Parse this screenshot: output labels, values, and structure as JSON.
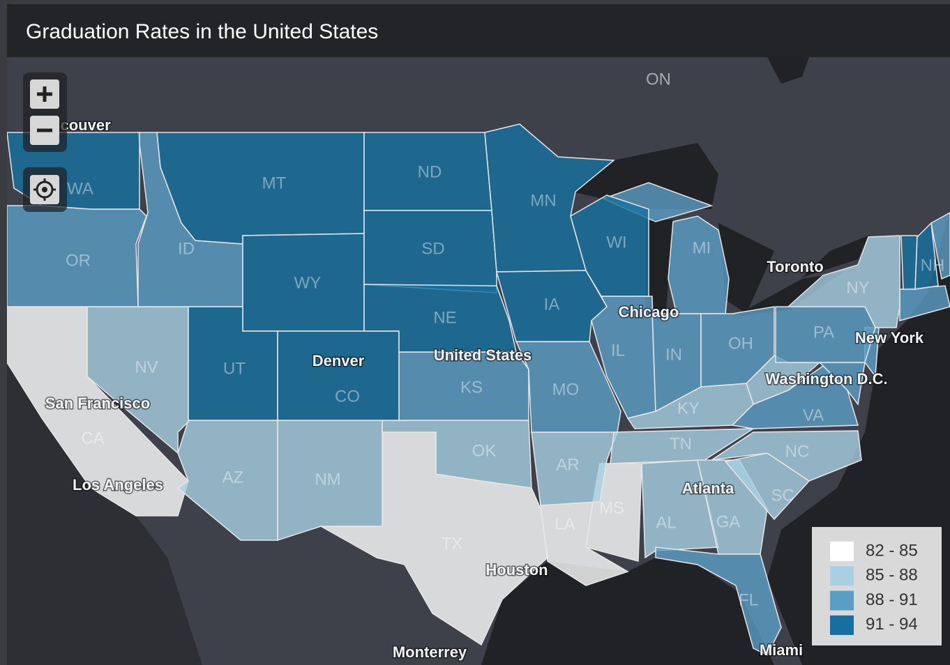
{
  "title": "Graduation Rates in the United States",
  "legend": [
    {
      "label": "82 - 85",
      "color": "#ffffff",
      "states": [
        "CA",
        "TX",
        "LA",
        "MS"
      ]
    },
    {
      "label": "85 - 88",
      "color": "#a8cfe2",
      "states": [
        "NV",
        "AZ",
        "NM",
        "OK",
        "AR",
        "KY",
        "TN",
        "AL",
        "GA",
        "SC",
        "NC",
        "NY"
      ]
    },
    {
      "label": "88 - 91",
      "color": "#5b9ec4",
      "states": [
        "OR",
        "ID",
        "KS",
        "MO",
        "IL",
        "IN",
        "MI",
        "OH",
        "FL",
        "VA",
        "PA"
      ]
    },
    {
      "label": "91 - 94",
      "color": "#16709f",
      "states": [
        "WA",
        "MT",
        "WY",
        "UT",
        "CO",
        "ND",
        "SD",
        "NE",
        "MN",
        "IA",
        "WI",
        "NH"
      ]
    }
  ],
  "places": [
    "ON",
    "Vancouver",
    "Toronto",
    "Chicago",
    "Denver",
    "United States",
    "San Francisco",
    "Los Angeles",
    "Houston",
    "Monterrey",
    "Atlanta",
    "New York",
    "Washington D.C.",
    "Miami"
  ]
}
